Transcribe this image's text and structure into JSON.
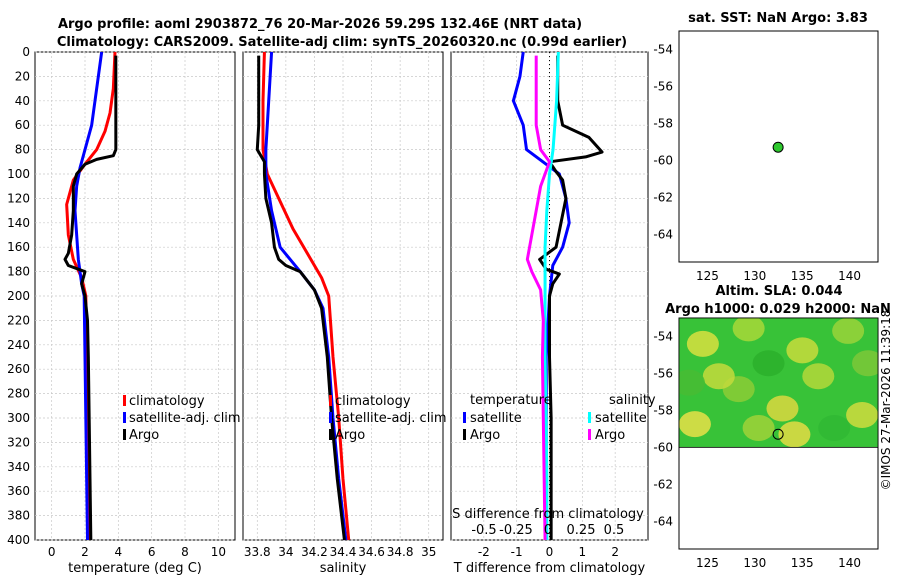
{
  "header": {
    "line1": "Argo profile: aoml 2903872_76 20-Mar-2026 59.29S 132.46E (NRT data)",
    "line2": "Climatology: CARS2009. Satellite-adj clim: synTS_20260320.nc (0.99d earlier)"
  },
  "watermark": "©IMOS 27-Mar-2026 11:39:18",
  "colors": {
    "climatology": "#ff0000",
    "satellite": "#0000ff",
    "argo": "#000000",
    "salinity_satellite": "#00ffff",
    "salinity_argo": "#ff00ff",
    "grid": "#c8c8c8",
    "map_green": "#2ec82e"
  },
  "chart_data": [
    {
      "type": "line",
      "name": "temperature-profile",
      "xlabel": "temperature (deg C)",
      "ylabel": "",
      "xlim": [
        -1,
        11
      ],
      "ylim": [
        400,
        0
      ],
      "xticks": [
        "0",
        "2",
        "4",
        "6",
        "8",
        "10"
      ],
      "xtick_values": [
        0,
        2,
        4,
        6,
        8,
        10
      ],
      "yticks": [
        "0",
        "20",
        "40",
        "60",
        "80",
        "100",
        "120",
        "140",
        "160",
        "180",
        "200",
        "220",
        "240",
        "260",
        "280",
        "300",
        "320",
        "340",
        "360",
        "380",
        "400"
      ],
      "ytick_values": [
        0,
        20,
        40,
        60,
        80,
        100,
        120,
        140,
        160,
        180,
        200,
        220,
        240,
        260,
        280,
        300,
        320,
        340,
        360,
        380,
        400
      ],
      "legend": [
        "climatology",
        "satellite-adj. clim",
        "Argo"
      ],
      "legend_position": "lower-right",
      "series": [
        {
          "name": "climatology",
          "color_key": "climatology",
          "points": [
            [
              3.8,
              0
            ],
            [
              3.7,
              30
            ],
            [
              3.5,
              50
            ],
            [
              3.2,
              65
            ],
            [
              2.7,
              80
            ],
            [
              2.0,
              92
            ],
            [
              1.3,
              105
            ],
            [
              0.9,
              125
            ],
            [
              1.0,
              150
            ],
            [
              1.3,
              170
            ],
            [
              1.8,
              185
            ],
            [
              2.05,
              200
            ],
            [
              2.1,
              250
            ],
            [
              2.15,
              300
            ],
            [
              2.2,
              350
            ],
            [
              2.3,
              400
            ]
          ]
        },
        {
          "name": "satellite-adj. clim",
          "color_key": "satellite",
          "points": [
            [
              3.0,
              0
            ],
            [
              2.8,
              20
            ],
            [
              2.6,
              40
            ],
            [
              2.4,
              60
            ],
            [
              2.0,
              80
            ],
            [
              1.7,
              95
            ],
            [
              1.5,
              110
            ],
            [
              1.4,
              130
            ],
            [
              1.5,
              150
            ],
            [
              1.6,
              170
            ],
            [
              1.8,
              190
            ],
            [
              1.95,
              200
            ],
            [
              2.0,
              250
            ],
            [
              2.05,
              300
            ],
            [
              2.1,
              350
            ],
            [
              2.15,
              400
            ]
          ]
        },
        {
          "name": "Argo",
          "color_key": "argo",
          "points": [
            [
              3.85,
              3
            ],
            [
              3.85,
              80
            ],
            [
              3.7,
              85
            ],
            [
              2.7,
              88
            ],
            [
              2.0,
              92
            ],
            [
              1.5,
              100
            ],
            [
              1.3,
              110
            ],
            [
              1.3,
              130
            ],
            [
              1.2,
              150
            ],
            [
              1.0,
              165
            ],
            [
              0.8,
              170
            ],
            [
              1.0,
              175
            ],
            [
              1.6,
              178
            ],
            [
              2.0,
              180
            ],
            [
              1.8,
              190
            ],
            [
              2.0,
              200
            ],
            [
              2.15,
              220
            ],
            [
              2.2,
              250
            ],
            [
              2.25,
              300
            ],
            [
              2.3,
              350
            ],
            [
              2.35,
              400
            ]
          ]
        }
      ]
    },
    {
      "type": "line",
      "name": "salinity-profile",
      "xlabel": "salinity",
      "ylabel": "",
      "xlim": [
        33.7,
        35.1
      ],
      "ylim": [
        400,
        0
      ],
      "xticks": [
        "33.8",
        "34",
        "34.2",
        "34.4",
        "34.6",
        "34.8",
        "35"
      ],
      "xtick_values": [
        33.8,
        34.0,
        34.2,
        34.4,
        34.6,
        34.8,
        35.0
      ],
      "legend": [
        "climatology",
        "satellite-adj. clim",
        "Argo"
      ],
      "legend_position": "lower-right",
      "series": [
        {
          "name": "climatology",
          "color_key": "climatology",
          "points": [
            [
              33.85,
              0
            ],
            [
              33.84,
              40
            ],
            [
              33.84,
              80
            ],
            [
              33.87,
              100
            ],
            [
              33.95,
              120
            ],
            [
              34.05,
              145
            ],
            [
              34.15,
              165
            ],
            [
              34.25,
              185
            ],
            [
              34.3,
              200
            ],
            [
              34.33,
              250
            ],
            [
              34.37,
              300
            ],
            [
              34.4,
              350
            ],
            [
              34.44,
              400
            ]
          ]
        },
        {
          "name": "satellite-adj. clim",
          "color_key": "satellite",
          "points": [
            [
              33.9,
              0
            ],
            [
              33.88,
              40
            ],
            [
              33.86,
              80
            ],
            [
              33.86,
              100
            ],
            [
              33.9,
              130
            ],
            [
              33.96,
              160
            ],
            [
              34.1,
              180
            ],
            [
              34.2,
              195
            ],
            [
              34.26,
              210
            ],
            [
              34.3,
              250
            ],
            [
              34.33,
              300
            ],
            [
              34.37,
              350
            ],
            [
              34.42,
              400
            ]
          ]
        },
        {
          "name": "Argo",
          "color_key": "argo",
          "points": [
            [
              33.81,
              3
            ],
            [
              33.81,
              60
            ],
            [
              33.8,
              80
            ],
            [
              33.85,
              90
            ],
            [
              33.85,
              100
            ],
            [
              33.86,
              120
            ],
            [
              33.9,
              140
            ],
            [
              33.92,
              160
            ],
            [
              33.95,
              170
            ],
            [
              34.0,
              175
            ],
            [
              34.1,
              180
            ],
            [
              34.2,
              195
            ],
            [
              34.25,
              210
            ],
            [
              34.29,
              250
            ],
            [
              34.32,
              300
            ],
            [
              34.36,
              350
            ],
            [
              34.41,
              400
            ]
          ]
        }
      ]
    },
    {
      "type": "line",
      "name": "difference-profile",
      "xlabel": "T difference from climatology",
      "top_label": "S difference from climatology",
      "xlim": [
        -3,
        3
      ],
      "ylim": [
        400,
        0
      ],
      "xticks": [
        "-2",
        "-1",
        "0",
        "1",
        "2"
      ],
      "xtick_values": [
        -2,
        -1,
        0,
        1,
        2
      ],
      "s_xticks": [
        "-0.5",
        "-0.25",
        "0",
        "0.25",
        "0.5"
      ],
      "s_xtick_values": [
        -0.5,
        -0.25,
        0,
        0.25,
        0.5
      ],
      "legend_temperature_title": "temperature",
      "legend_salinity_title": "salinity",
      "legend": [
        "satellite",
        "Argo",
        "satellite",
        "Argo"
      ],
      "legend_position": "lower",
      "series": [
        {
          "name": "temperature satellite",
          "color_key": "satellite",
          "points": [
            [
              -0.8,
              0
            ],
            [
              -0.9,
              20
            ],
            [
              -1.1,
              40
            ],
            [
              -0.8,
              60
            ],
            [
              -0.7,
              80
            ],
            [
              -0.2,
              90
            ],
            [
              0.3,
              100
            ],
            [
              0.5,
              120
            ],
            [
              0.6,
              140
            ],
            [
              0.4,
              160
            ],
            [
              0.1,
              175
            ],
            [
              0.0,
              200
            ],
            [
              -0.1,
              250
            ],
            [
              -0.1,
              300
            ],
            [
              -0.1,
              350
            ],
            [
              -0.1,
              400
            ]
          ]
        },
        {
          "name": "temperature Argo",
          "color_key": "argo",
          "points": [
            [
              0.25,
              3
            ],
            [
              0.25,
              40
            ],
            [
              0.4,
              60
            ],
            [
              1.2,
              70
            ],
            [
              1.6,
              82
            ],
            [
              1.1,
              86
            ],
            [
              0.0,
              90
            ],
            [
              0.2,
              98
            ],
            [
              0.4,
              105
            ],
            [
              0.5,
              120
            ],
            [
              0.35,
              140
            ],
            [
              0.2,
              160
            ],
            [
              -0.3,
              170
            ],
            [
              -0.1,
              178
            ],
            [
              0.3,
              182
            ],
            [
              0.1,
              190
            ],
            [
              0.0,
              200
            ],
            [
              0.0,
              250
            ],
            [
              0.05,
              300
            ],
            [
              0.05,
              350
            ],
            [
              0.05,
              400
            ]
          ]
        },
        {
          "name": "salinity satellite",
          "color_key": "salinity_satellite",
          "points": [
            [
              0.1,
              0
            ],
            [
              0.08,
              40
            ],
            [
              0.04,
              80
            ],
            [
              0.0,
              100
            ],
            [
              -0.03,
              130
            ],
            [
              -0.05,
              160
            ],
            [
              -0.05,
              200
            ],
            [
              -0.05,
              250
            ],
            [
              -0.04,
              300
            ],
            [
              -0.03,
              350
            ],
            [
              -0.03,
              400
            ]
          ]
        },
        {
          "name": "salinity Argo",
          "color_key": "salinity_argo",
          "points": [
            [
              -0.15,
              3
            ],
            [
              -0.15,
              60
            ],
            [
              -0.1,
              80
            ],
            [
              0.0,
              90
            ],
            [
              -0.1,
              110
            ],
            [
              -0.15,
              130
            ],
            [
              -0.2,
              150
            ],
            [
              -0.25,
              170
            ],
            [
              -0.2,
              180
            ],
            [
              -0.1,
              195
            ],
            [
              -0.07,
              220
            ],
            [
              -0.08,
              250
            ],
            [
              -0.07,
              300
            ],
            [
              -0.06,
              350
            ],
            [
              -0.05,
              400
            ]
          ]
        }
      ]
    },
    {
      "type": "scatter",
      "name": "sst-map",
      "title": "sat. SST: NaN Argo: 3.83",
      "xlim": [
        122,
        143
      ],
      "ylim": [
        -65.5,
        -53
      ],
      "xticks": [
        "125",
        "130",
        "135",
        "140"
      ],
      "xtick_values": [
        125,
        130,
        135,
        140
      ],
      "yticks": [
        "-54",
        "-56",
        "-58",
        "-60",
        "-62",
        "-64"
      ],
      "ytick_values": [
        -54,
        -56,
        -58,
        -60,
        -62,
        -64
      ],
      "points": [
        {
          "lon": 132.46,
          "lat": -59.29,
          "label": "Argo float"
        }
      ]
    },
    {
      "type": "heatmap",
      "name": "sla-map",
      "title_line1": "Altim. SLA: 0.044",
      "title_line2": "Argo h1000: 0.029 h2000: NaN",
      "xlim": [
        122,
        143
      ],
      "ylim": [
        -65.5,
        -53
      ],
      "xticks": [
        "125",
        "130",
        "135",
        "140"
      ],
      "xtick_values": [
        125,
        130,
        135,
        140
      ],
      "yticks": [
        "-54",
        "-56",
        "-58",
        "-60",
        "-62",
        "-64"
      ],
      "ytick_values": [
        -54,
        -56,
        -58,
        -60,
        -62,
        -64
      ],
      "data_lat_range": [
        -60,
        -53
      ],
      "points": [
        {
          "lon": 132.46,
          "lat": -59.29,
          "label": "Argo float"
        }
      ]
    }
  ]
}
